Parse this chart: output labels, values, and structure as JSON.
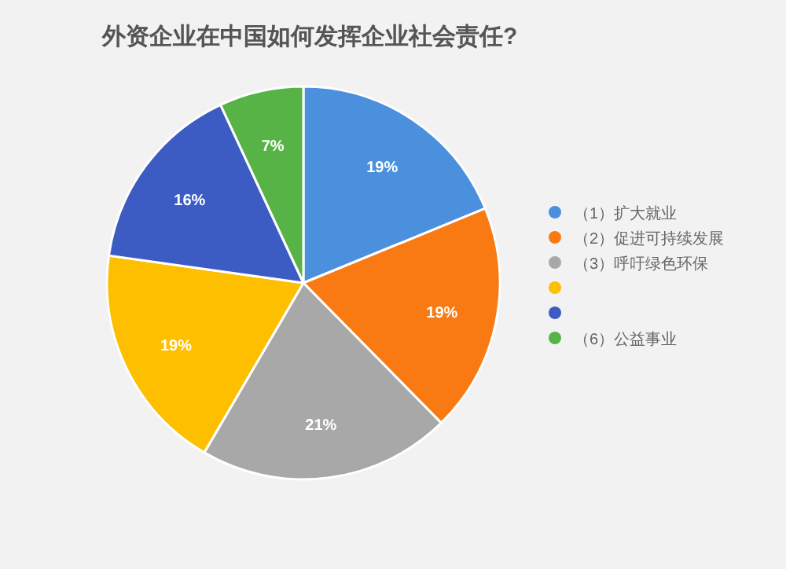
{
  "chart_data": {
    "type": "pie",
    "title": "外资企业在中国如何发挥企业社会责任?",
    "categories": [
      "（1）扩大就业",
      "（2）促进可持续发展",
      "（3）呼吁绿色环保",
      null,
      null,
      "（6）公益事业"
    ],
    "values": [
      19,
      19,
      21,
      19,
      16,
      7
    ],
    "colors": [
      "#4a90dc",
      "#f97a12",
      "#a8a8a8",
      "#fdbf00",
      "#3c5cc4",
      "#58b347"
    ],
    "value_labels": [
      "19%",
      "19%",
      "21%",
      "19%",
      "16%",
      "7%"
    ],
    "legend": "right"
  }
}
